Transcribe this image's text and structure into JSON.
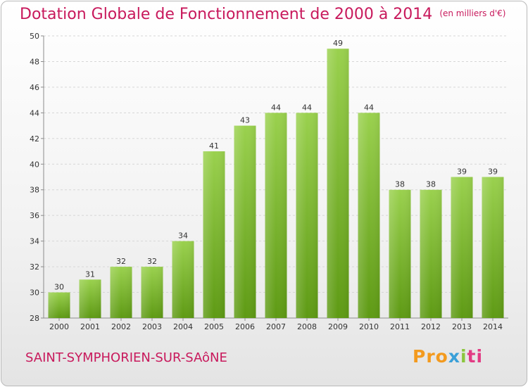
{
  "chart_data": {
    "type": "bar",
    "title": "Dotation Globale de Fonctionnement de 2000 à 2014",
    "unit_note": "(en milliers d'€)",
    "categories": [
      "2000",
      "2001",
      "2002",
      "2003",
      "2004",
      "2005",
      "2006",
      "2007",
      "2008",
      "2009",
      "2010",
      "2011",
      "2012",
      "2013",
      "2014"
    ],
    "values": [
      30,
      31,
      32,
      32,
      34,
      41,
      43,
      44,
      44,
      49,
      44,
      38,
      38,
      39,
      39
    ],
    "ylim": [
      28,
      50
    ],
    "yticks": [
      28,
      30,
      32,
      34,
      36,
      38,
      40,
      42,
      44,
      46,
      48,
      50
    ],
    "grid": true,
    "colors": {
      "bar_top": "#9ad14e",
      "bar_bottom": "#5e9a14",
      "title": "#c8195c"
    }
  },
  "commune": "SAINT-SYMPHORIEN-SUR-SAôNE",
  "logo": {
    "p1": "Pro",
    "p2": "x",
    "p3": "i",
    "p4": "ti"
  }
}
